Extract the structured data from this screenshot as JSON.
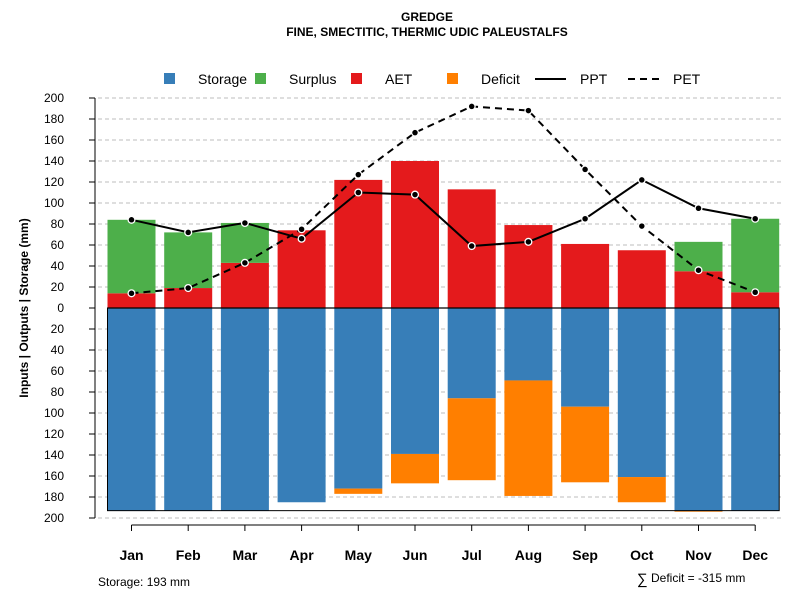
{
  "chart_data": {
    "type": "bar",
    "title": "GREDGE",
    "subtitle": "FINE, SMECTITIC, THERMIC UDIC PALEUSTALFS",
    "ylabel": "Inputs | Outputs | Storage    (mm)",
    "ylim": [
      -200,
      200
    ],
    "yticks": [
      200,
      180,
      160,
      140,
      120,
      100,
      80,
      60,
      40,
      20,
      0,
      20,
      40,
      60,
      80,
      100,
      120,
      140,
      160,
      180,
      200
    ],
    "grid": true,
    "legend_position": "top",
    "categories": [
      "Jan",
      "Feb",
      "Mar",
      "Apr",
      "May",
      "Jun",
      "Jul",
      "Aug",
      "Sep",
      "Oct",
      "Nov",
      "Dec"
    ],
    "legend": [
      {
        "name": "Storage",
        "kind": "box",
        "color": "#377EB8"
      },
      {
        "name": "Surplus",
        "kind": "box",
        "color": "#4DAF4A"
      },
      {
        "name": "AET",
        "kind": "box",
        "color": "#E41A1C"
      },
      {
        "name": "Deficit",
        "kind": "box",
        "color": "#FF7F00"
      },
      {
        "name": "PPT",
        "kind": "solid",
        "color": "#000000"
      },
      {
        "name": "PET",
        "kind": "dashed",
        "color": "#000000"
      }
    ],
    "series": [
      {
        "name": "Storage",
        "color": "#377EB8",
        "values": [
          193,
          193,
          193,
          185,
          172,
          139,
          86,
          69,
          94,
          161,
          193,
          193
        ]
      },
      {
        "name": "Surplus",
        "color": "#4DAF4A",
        "values": [
          70,
          53,
          38,
          0,
          0,
          0,
          0,
          0,
          0,
          0,
          28,
          70
        ]
      },
      {
        "name": "AET",
        "color": "#E41A1C",
        "values": [
          14,
          19,
          43,
          74,
          122,
          140,
          113,
          79,
          61,
          55,
          35,
          15
        ]
      },
      {
        "name": "Deficit",
        "color": "#FF7F00",
        "values": [
          0,
          0,
          0,
          0,
          5,
          28,
          78,
          110,
          72,
          24,
          1,
          0
        ]
      },
      {
        "name": "PPT",
        "color": "#000000",
        "values": [
          84,
          72,
          81,
          66,
          110,
          108,
          59,
          63,
          85,
          122,
          95,
          85
        ]
      },
      {
        "name": "PET",
        "color": "#000000",
        "values": [
          14,
          19,
          43,
          75,
          127,
          167,
          192,
          188,
          132,
          78,
          36,
          15
        ]
      }
    ],
    "storage_capacity": 193,
    "footer_left": "Storage: 193 mm",
    "footer_right_symbol": "∑",
    "footer_right": "Deficit = -315 mm"
  }
}
